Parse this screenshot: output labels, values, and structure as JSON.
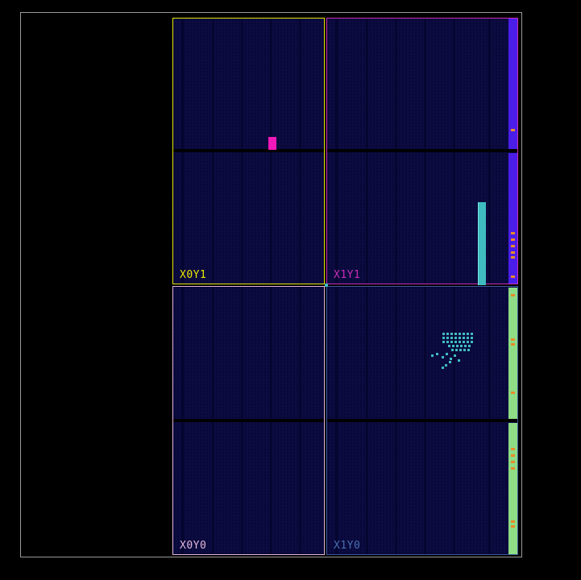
{
  "device": {
    "regions": [
      {
        "id": "x0y1",
        "label": "X0Y1",
        "color": "#e6e600"
      },
      {
        "id": "x1y1",
        "label": "X1Y1",
        "color": "#cc2db8"
      },
      {
        "id": "x0y0",
        "label": "X0Y0",
        "color": "#e3b6d8"
      },
      {
        "id": "x1y0",
        "label": "X1Y0",
        "color": "#4a6fb0"
      }
    ],
    "colors": {
      "fabric": "#070738",
      "io_top": "#4a1ee8",
      "io_bottom": "#8edc86",
      "placed_cell_magenta": "#f018b8",
      "placed_cell_teal": "#3fbcc0",
      "io_pin": "#e98a2a"
    }
  }
}
